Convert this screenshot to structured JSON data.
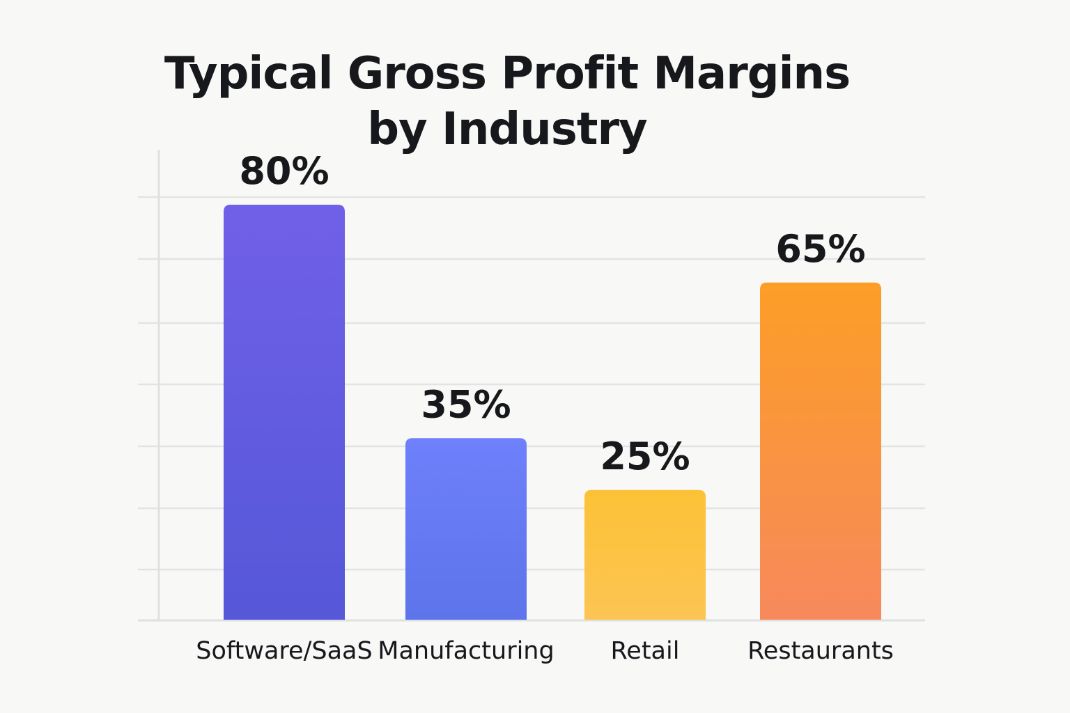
{
  "chart_data": {
    "type": "bar",
    "title": "Typical Gross Profit Margins by Industry",
    "title_lines": [
      "Typical Gross Profit Margins",
      "by Industry"
    ],
    "categories": [
      "Software/SaaS",
      "Manufacturing",
      "Retail",
      "Restaurants"
    ],
    "values": [
      80,
      35,
      25,
      65
    ],
    "value_labels": [
      "80%",
      "35%",
      "25%",
      "65%"
    ],
    "colors": [
      {
        "top": "#7060e8",
        "bottom": "#5558d8"
      },
      {
        "top": "#6e80fb",
        "bottom": "#5d74ea"
      },
      {
        "top": "#fcc236",
        "bottom": "#fcc453"
      },
      {
        "top": "#fc9e26",
        "bottom": "#f7895c"
      }
    ],
    "xlabel": "",
    "ylabel": "",
    "grid": true
  }
}
